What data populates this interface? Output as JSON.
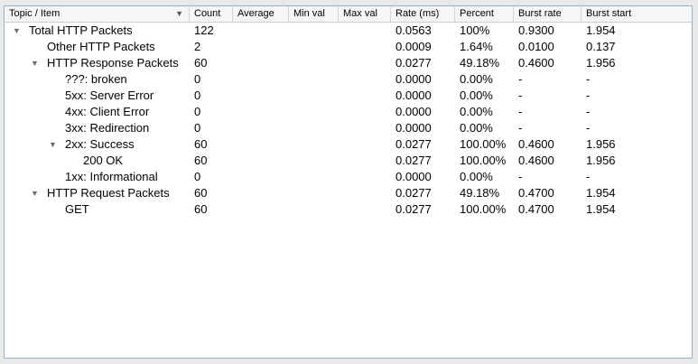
{
  "table": {
    "sort_indicator": "▼",
    "columns": [
      "Topic / Item",
      "Count",
      "Average",
      "Min val",
      "Max val",
      "Rate (ms)",
      "Percent",
      "Burst rate",
      "Burst start"
    ],
    "rows": [
      {
        "item": "Total HTTP Packets",
        "count": "122",
        "rate": "0.0563",
        "percent": "100%",
        "burst_rate": "0.9300",
        "burst_start": "1.954",
        "level": 0,
        "expander": "▼"
      },
      {
        "item": "Other HTTP Packets",
        "count": "2",
        "rate": "0.0009",
        "percent": "1.64%",
        "burst_rate": "0.0100",
        "burst_start": "0.137",
        "level": 1,
        "expander": ""
      },
      {
        "item": "HTTP Response Packets",
        "count": "60",
        "rate": "0.0277",
        "percent": "49.18%",
        "burst_rate": "0.4600",
        "burst_start": "1.956",
        "level": 1,
        "expander": "▼"
      },
      {
        "item": "???: broken",
        "count": "0",
        "rate": "0.0000",
        "percent": "0.00%",
        "burst_rate": "-",
        "burst_start": "-",
        "level": 2,
        "expander": ""
      },
      {
        "item": "5xx: Server Error",
        "count": "0",
        "rate": "0.0000",
        "percent": "0.00%",
        "burst_rate": "-",
        "burst_start": "-",
        "level": 2,
        "expander": ""
      },
      {
        "item": "4xx: Client Error",
        "count": "0",
        "rate": "0.0000",
        "percent": "0.00%",
        "burst_rate": "-",
        "burst_start": "-",
        "level": 2,
        "expander": ""
      },
      {
        "item": "3xx: Redirection",
        "count": "0",
        "rate": "0.0000",
        "percent": "0.00%",
        "burst_rate": "-",
        "burst_start": "-",
        "level": 2,
        "expander": ""
      },
      {
        "item": "2xx: Success",
        "count": "60",
        "rate": "0.0277",
        "percent": "100.00%",
        "burst_rate": "0.4600",
        "burst_start": "1.956",
        "level": 2,
        "expander": "▼"
      },
      {
        "item": "200 OK",
        "count": "60",
        "rate": "0.0277",
        "percent": "100.00%",
        "burst_rate": "0.4600",
        "burst_start": "1.956",
        "level": 3,
        "expander": ""
      },
      {
        "item": "1xx: Informational",
        "count": "0",
        "rate": "0.0000",
        "percent": "0.00%",
        "burst_rate": "-",
        "burst_start": "-",
        "level": 2,
        "expander": ""
      },
      {
        "item": "HTTP Request Packets",
        "count": "60",
        "rate": "0.0277",
        "percent": "49.18%",
        "burst_rate": "0.4700",
        "burst_start": "1.954",
        "level": 1,
        "expander": "▼"
      },
      {
        "item": "GET",
        "count": "60",
        "rate": "0.0277",
        "percent": "100.00%",
        "burst_rate": "0.4700",
        "burst_start": "1.954",
        "level": 2,
        "expander": ""
      }
    ]
  }
}
